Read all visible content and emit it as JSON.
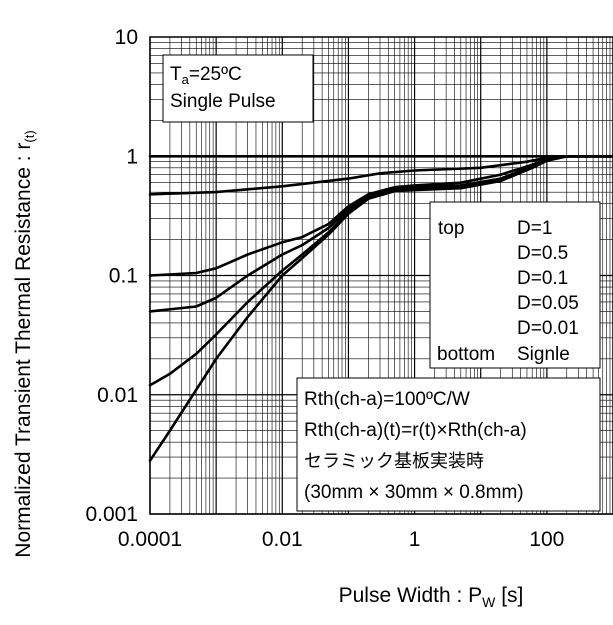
{
  "chart_data": {
    "type": "line",
    "xlabel_main": "Pulse Width : P",
    "xlabel_sub": "W",
    "xlabel_unit": " [s]",
    "ylabel_main": "Normalized Transient Thermal Resistance : r",
    "ylabel_sub": "(t)",
    "x_scale": "log",
    "y_scale": "log",
    "xlim": [
      0.0001,
      1000
    ],
    "ylim": [
      0.001,
      10
    ],
    "x_ticks": [
      {
        "value": 0.0001,
        "label": "0.0001"
      },
      {
        "value": 0.01,
        "label": "0.01"
      },
      {
        "value": 1,
        "label": "1"
      },
      {
        "value": 100,
        "label": "100"
      }
    ],
    "y_ticks": [
      {
        "value": 10,
        "label": "10"
      },
      {
        "value": 1,
        "label": "1"
      },
      {
        "value": 0.1,
        "label": "0.1"
      },
      {
        "value": 0.01,
        "label": "0.01"
      },
      {
        "value": 0.001,
        "label": "0.001"
      }
    ],
    "grid": true,
    "series": [
      {
        "name": "D=1",
        "points": [
          [
            0.0001,
            1
          ],
          [
            1000,
            1
          ]
        ]
      },
      {
        "name": "D=0.5",
        "points": [
          [
            0.0001,
            0.48
          ],
          [
            0.001,
            0.5
          ],
          [
            0.01,
            0.56
          ],
          [
            0.1,
            0.65
          ],
          [
            0.3,
            0.72
          ],
          [
            1,
            0.76
          ],
          [
            10,
            0.8
          ],
          [
            50,
            0.9
          ],
          [
            100,
            0.97
          ],
          [
            200,
            1
          ],
          [
            1000,
            1
          ]
        ]
      },
      {
        "name": "D=0.1",
        "points": [
          [
            0.0001,
            0.1
          ],
          [
            0.0005,
            0.105
          ],
          [
            0.001,
            0.115
          ],
          [
            0.003,
            0.15
          ],
          [
            0.01,
            0.19
          ],
          [
            0.02,
            0.21
          ],
          [
            0.05,
            0.27
          ],
          [
            0.1,
            0.38
          ],
          [
            0.2,
            0.48
          ],
          [
            0.5,
            0.55
          ],
          [
            1,
            0.57
          ],
          [
            5,
            0.6
          ],
          [
            20,
            0.7
          ],
          [
            60,
            0.85
          ],
          [
            100,
            0.95
          ],
          [
            200,
            1
          ],
          [
            1000,
            1
          ]
        ]
      },
      {
        "name": "D=0.05",
        "points": [
          [
            0.0001,
            0.05
          ],
          [
            0.0005,
            0.055
          ],
          [
            0.001,
            0.065
          ],
          [
            0.003,
            0.1
          ],
          [
            0.01,
            0.15
          ],
          [
            0.02,
            0.18
          ],
          [
            0.05,
            0.25
          ],
          [
            0.1,
            0.36
          ],
          [
            0.2,
            0.46
          ],
          [
            0.5,
            0.53
          ],
          [
            1,
            0.55
          ],
          [
            5,
            0.57
          ],
          [
            20,
            0.65
          ],
          [
            60,
            0.82
          ],
          [
            100,
            0.93
          ],
          [
            200,
            1
          ],
          [
            1000,
            1
          ]
        ]
      },
      {
        "name": "D=0.01",
        "points": [
          [
            0.0001,
            0.012
          ],
          [
            0.0002,
            0.015
          ],
          [
            0.0005,
            0.022
          ],
          [
            0.001,
            0.032
          ],
          [
            0.003,
            0.06
          ],
          [
            0.01,
            0.11
          ],
          [
            0.02,
            0.15
          ],
          [
            0.05,
            0.23
          ],
          [
            0.1,
            0.34
          ],
          [
            0.2,
            0.45
          ],
          [
            0.5,
            0.52
          ],
          [
            1,
            0.53
          ],
          [
            5,
            0.55
          ],
          [
            20,
            0.63
          ],
          [
            60,
            0.8
          ],
          [
            100,
            0.92
          ],
          [
            200,
            1
          ],
          [
            1000,
            1
          ]
        ]
      },
      {
        "name": "Signle",
        "points": [
          [
            0.0001,
            0.0028
          ],
          [
            0.0002,
            0.005
          ],
          [
            0.0005,
            0.011
          ],
          [
            0.001,
            0.02
          ],
          [
            0.003,
            0.045
          ],
          [
            0.01,
            0.1
          ],
          [
            0.02,
            0.14
          ],
          [
            0.05,
            0.22
          ],
          [
            0.1,
            0.33
          ],
          [
            0.2,
            0.44
          ],
          [
            0.5,
            0.51
          ],
          [
            1,
            0.52
          ],
          [
            5,
            0.54
          ],
          [
            20,
            0.62
          ],
          [
            60,
            0.8
          ],
          [
            100,
            0.92
          ],
          [
            200,
            1
          ],
          [
            1000,
            1
          ]
        ]
      }
    ],
    "conditions_box": {
      "line1_main": "T",
      "line1_sub": "a",
      "line1_rest": "=25ºC",
      "line2": "Single Pulse"
    },
    "legend": {
      "top_word": "top",
      "bottom_word": "bottom",
      "entries": [
        "D=1",
        "D=0.5",
        "D=0.1",
        "D=0.05",
        "D=0.01",
        "Signle"
      ]
    },
    "note_box": [
      "Rth(ch-a)=100ºC/W",
      "Rth(ch-a)(t)=r(t)×Rth(ch-a)",
      "セラミック基板実装時",
      "(30mm × 30mm × 0.8mm)"
    ]
  }
}
